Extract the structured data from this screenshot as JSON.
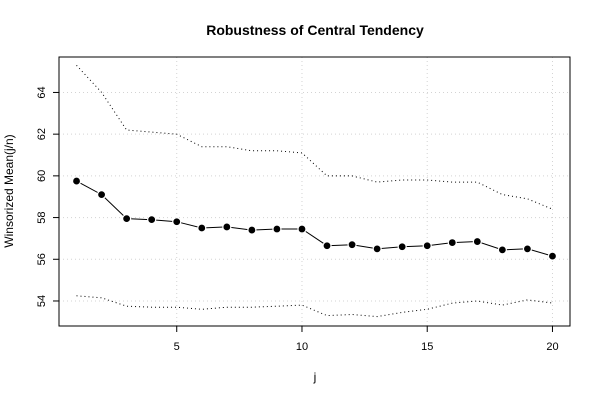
{
  "chart_data": {
    "type": "line",
    "title": "Robustness of Central Tendency",
    "xlabel": "j",
    "ylabel": "Winsorized Mean(j/n)",
    "xlim": [
      0.3,
      20.7
    ],
    "ylim": [
      52.8,
      65.7
    ],
    "x_ticks": [
      5,
      10,
      15,
      20
    ],
    "y_ticks": [
      54,
      56,
      58,
      60,
      62,
      64
    ],
    "grid": true,
    "x": [
      1,
      2,
      3,
      4,
      5,
      6,
      7,
      8,
      9,
      10,
      11,
      12,
      13,
      14,
      15,
      16,
      17,
      18,
      19,
      20
    ],
    "series": [
      {
        "role": "upper-bound",
        "style": "dotted",
        "values": [
          65.3,
          64.0,
          62.2,
          62.1,
          62.0,
          61.4,
          61.4,
          61.2,
          61.2,
          61.1,
          60.0,
          60.0,
          59.7,
          59.8,
          59.8,
          59.7,
          59.7,
          59.1,
          58.9,
          58.4
        ]
      },
      {
        "role": "mean",
        "style": "solid-with-points",
        "values": [
          59.75,
          59.1,
          57.95,
          57.9,
          57.8,
          57.5,
          57.55,
          57.4,
          57.45,
          57.45,
          56.65,
          56.7,
          56.5,
          56.6,
          56.65,
          56.8,
          56.85,
          56.45,
          56.5,
          56.15
        ]
      },
      {
        "role": "lower-bound",
        "style": "dotted",
        "values": [
          54.25,
          54.15,
          53.75,
          53.7,
          53.7,
          53.6,
          53.7,
          53.7,
          53.75,
          53.8,
          53.3,
          53.35,
          53.25,
          53.45,
          53.6,
          53.9,
          54.0,
          53.8,
          54.05,
          53.9
        ]
      }
    ]
  }
}
